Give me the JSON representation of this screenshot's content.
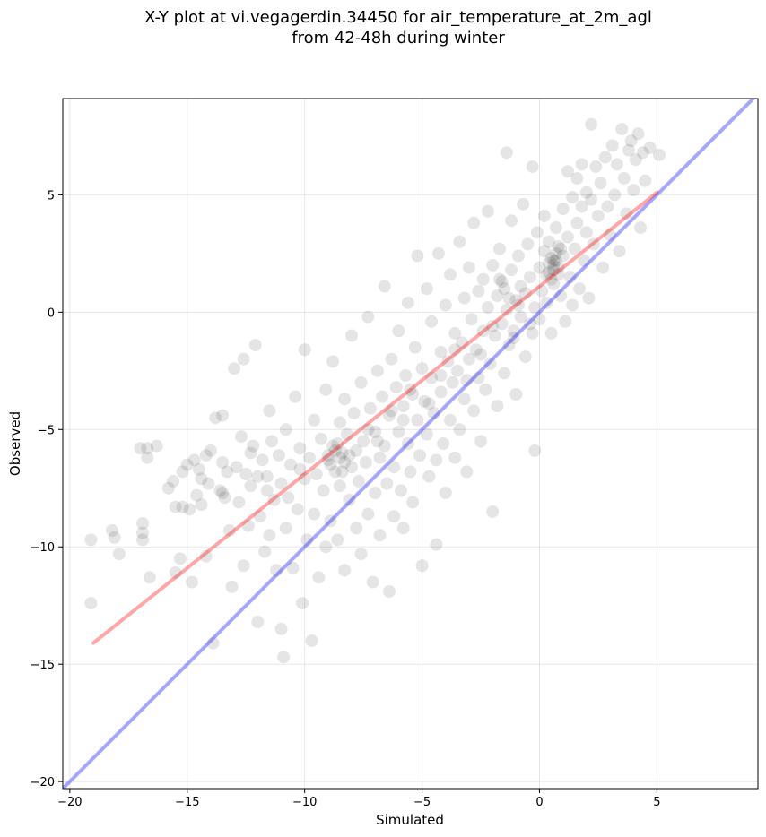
{
  "chart_data": {
    "type": "scatter",
    "title": [
      "X-Y plot at vi.vegagerdin.34450 for air_temperature_at_2m_agl",
      "from 42-48h during winter"
    ],
    "xlabel": "Simulated",
    "ylabel": "Observed",
    "xlim": [
      -20.3,
      9.3
    ],
    "ylim": [
      -20.3,
      9.1
    ],
    "xticks": [
      -20,
      -15,
      -10,
      -5,
      0,
      5
    ],
    "yticks": [
      -20,
      -15,
      -10,
      -5,
      0,
      5
    ],
    "grid": true,
    "point_color": "#000000",
    "point_alpha": 0.1,
    "reference_lines": [
      {
        "label": "identity",
        "color": "#0000ff",
        "alpha": 0.35,
        "x": [
          -20.3,
          9.3
        ],
        "y": [
          -20.3,
          9.3
        ]
      },
      {
        "label": "regression",
        "color": "#ff0000",
        "alpha": 0.35,
        "x": [
          -19,
          5
        ],
        "y": [
          -14.1,
          5.1
        ]
      }
    ],
    "points": [
      [
        -19.1,
        -9.7
      ],
      [
        -19.1,
        -12.4
      ],
      [
        -18.2,
        -9.3
      ],
      [
        -18.1,
        -9.6
      ],
      [
        -17.9,
        -10.3
      ],
      [
        -17.0,
        -5.8
      ],
      [
        -16.9,
        -9.0
      ],
      [
        -16.9,
        -9.4
      ],
      [
        -16.9,
        -9.7
      ],
      [
        -16.7,
        -6.2
      ],
      [
        -16.7,
        -5.8
      ],
      [
        -16.6,
        -11.3
      ],
      [
        -16.3,
        -5.7
      ],
      [
        -15.8,
        -7.5
      ],
      [
        -15.6,
        -7.2
      ],
      [
        -15.5,
        -8.3
      ],
      [
        -15.5,
        -11.1
      ],
      [
        -15.3,
        -10.5
      ],
      [
        -15.2,
        -6.8
      ],
      [
        -15.2,
        -8.3
      ],
      [
        -15.0,
        -6.5
      ],
      [
        -14.9,
        -8.4
      ],
      [
        -14.8,
        -11.5
      ],
      [
        -14.7,
        -6.3
      ],
      [
        -14.6,
        -7.8
      ],
      [
        -14.5,
        -6.7
      ],
      [
        -14.4,
        -8.2
      ],
      [
        -14.2,
        -6.1
      ],
      [
        -14.2,
        -10.4
      ],
      [
        -14.1,
        -7.3
      ],
      [
        -14.0,
        -5.9
      ],
      [
        -13.9,
        -14.1
      ],
      [
        -13.8,
        -4.5
      ],
      [
        -13.6,
        -7.6
      ],
      [
        -13.5,
        -6.4
      ],
      [
        -13.5,
        -4.4
      ],
      [
        -13.4,
        -7.9
      ],
      [
        -13.3,
        -6.8
      ],
      [
        -13.2,
        -9.3
      ],
      [
        -13.1,
        -11.7
      ],
      [
        -13.0,
        -2.4
      ],
      [
        -12.9,
        -6.6
      ],
      [
        -12.8,
        -8.1
      ],
      [
        -12.7,
        -5.3
      ],
      [
        -12.6,
        -2.0
      ],
      [
        -12.6,
        -10.8
      ],
      [
        -12.5,
        -6.9
      ],
      [
        -12.4,
        -9.1
      ],
      [
        -12.3,
        -7.4
      ],
      [
        -12.2,
        -5.7
      ],
      [
        -12.1,
        -1.4
      ],
      [
        -12.0,
        -7.0
      ],
      [
        -12.0,
        -13.2
      ],
      [
        -11.9,
        -8.7
      ],
      [
        -11.8,
        -6.3
      ],
      [
        -11.7,
        -10.2
      ],
      [
        -11.6,
        -7.6
      ],
      [
        -11.5,
        -4.2
      ],
      [
        -11.5,
        -9.5
      ],
      [
        -11.4,
        -5.5
      ],
      [
        -11.3,
        -8.0
      ],
      [
        -11.2,
        -11.0
      ],
      [
        -11.1,
        -6.1
      ],
      [
        -11.0,
        -7.3
      ],
      [
        -11.0,
        -13.5
      ],
      [
        -10.9,
        -14.7
      ],
      [
        -10.8,
        -5.0
      ],
      [
        -10.8,
        -9.2
      ],
      [
        -10.7,
        -7.9
      ],
      [
        -10.6,
        -6.5
      ],
      [
        -10.5,
        -10.9
      ],
      [
        -10.4,
        -3.6
      ],
      [
        -10.3,
        -8.4
      ],
      [
        -10.2,
        -5.8
      ],
      [
        -10.1,
        -12.4
      ],
      [
        -10.0,
        -1.6
      ],
      [
        -10.0,
        -7.1
      ],
      [
        -9.9,
        -9.7
      ],
      [
        -9.8,
        -6.2
      ],
      [
        -9.7,
        -14.0
      ],
      [
        -9.6,
        -4.6
      ],
      [
        -9.6,
        -8.6
      ],
      [
        -9.5,
        -6.9
      ],
      [
        -9.4,
        -11.3
      ],
      [
        -9.3,
        -5.4
      ],
      [
        -9.2,
        -7.6
      ],
      [
        -9.1,
        -3.3
      ],
      [
        -9.1,
        -10.0
      ],
      [
        -9.0,
        -6.1
      ],
      [
        -8.9,
        -8.9
      ],
      [
        -8.8,
        -5.7
      ],
      [
        -8.8,
        -2.1
      ],
      [
        -8.7,
        -6.8
      ],
      [
        -8.6,
        -9.7
      ],
      [
        -8.5,
        -4.7
      ],
      [
        -8.5,
        -7.4
      ],
      [
        -8.4,
        -6.0
      ],
      [
        -8.3,
        -3.7
      ],
      [
        -8.3,
        -11.0
      ],
      [
        -8.2,
        -5.2
      ],
      [
        -8.1,
        -8.0
      ],
      [
        -8.0,
        -6.6
      ],
      [
        -8.0,
        -1.0
      ],
      [
        -7.9,
        -4.3
      ],
      [
        -7.8,
        -9.2
      ],
      [
        -7.8,
        -5.9
      ],
      [
        -7.7,
        -7.2
      ],
      [
        -7.6,
        -3.0
      ],
      [
        -7.6,
        -10.3
      ],
      [
        -7.5,
        -5.5
      ],
      [
        -7.4,
        -6.4
      ],
      [
        -7.3,
        -8.6
      ],
      [
        -7.3,
        -0.2
      ],
      [
        -7.2,
        -4.1
      ],
      [
        -7.1,
        -11.5
      ],
      [
        -7.0,
        -5.1
      ],
      [
        -7.0,
        -7.7
      ],
      [
        -6.9,
        -2.5
      ],
      [
        -6.8,
        -6.2
      ],
      [
        -6.8,
        -9.5
      ],
      [
        -6.7,
        -3.6
      ],
      [
        -6.6,
        -5.7
      ],
      [
        -6.6,
        1.1
      ],
      [
        -6.5,
        -7.3
      ],
      [
        -6.4,
        -4.4
      ],
      [
        -6.4,
        -11.9
      ],
      [
        -6.3,
        -2.0
      ],
      [
        -6.2,
        -6.6
      ],
      [
        -6.2,
        -8.7
      ],
      [
        -6.1,
        -3.2
      ],
      [
        -6.0,
        -5.1
      ],
      [
        -6.0,
        -0.8
      ],
      [
        -5.9,
        -7.6
      ],
      [
        -5.8,
        -4.0
      ],
      [
        -5.8,
        -9.2
      ],
      [
        -5.7,
        -2.7
      ],
      [
        -5.6,
        -5.6
      ],
      [
        -5.6,
        0.4
      ],
      [
        -5.5,
        -6.8
      ],
      [
        -5.4,
        -3.5
      ],
      [
        -5.4,
        -8.1
      ],
      [
        -5.3,
        -1.5
      ],
      [
        -5.2,
        -4.6
      ],
      [
        -5.2,
        2.4
      ],
      [
        -5.1,
        -6.1
      ],
      [
        -5.0,
        -2.4
      ],
      [
        -5.0,
        -10.8
      ],
      [
        -4.9,
        -3.8
      ],
      [
        -4.8,
        -5.2
      ],
      [
        -4.8,
        1.0
      ],
      [
        -4.7,
        -7.0
      ],
      [
        -4.6,
        -2.8
      ],
      [
        -4.6,
        -0.4
      ],
      [
        -4.5,
        -4.3
      ],
      [
        -4.4,
        -9.9
      ],
      [
        -4.4,
        -6.3
      ],
      [
        -4.3,
        2.5
      ],
      [
        -4.2,
        -1.7
      ],
      [
        -4.2,
        -3.4
      ],
      [
        -4.1,
        -5.6
      ],
      [
        -4.0,
        0.3
      ],
      [
        -4.0,
        -7.7
      ],
      [
        -3.9,
        -2.1
      ],
      [
        -3.8,
        -4.6
      ],
      [
        -3.8,
        1.6
      ],
      [
        -3.7,
        -3.0
      ],
      [
        -3.6,
        -6.2
      ],
      [
        -3.6,
        -0.9
      ],
      [
        -3.5,
        -2.5
      ],
      [
        -3.4,
        3.0
      ],
      [
        -3.4,
        -5.0
      ],
      [
        -3.3,
        -1.3
      ],
      [
        -3.2,
        0.6
      ],
      [
        -3.2,
        -3.7
      ],
      [
        -3.1,
        -6.8
      ],
      [
        -3.0,
        -2.0
      ],
      [
        -3.0,
        1.9
      ],
      [
        -2.9,
        -0.3
      ],
      [
        -2.8,
        -4.2
      ],
      [
        -2.8,
        3.8
      ],
      [
        -2.7,
        -1.6
      ],
      [
        -2.6,
        0.9
      ],
      [
        -2.6,
        -2.8
      ],
      [
        -2.5,
        -5.5
      ],
      [
        -2.4,
        1.4
      ],
      [
        -2.4,
        -0.8
      ],
      [
        -2.3,
        -3.3
      ],
      [
        -2.2,
        4.3
      ],
      [
        -2.2,
        0.2
      ],
      [
        -2.1,
        -2.2
      ],
      [
        -2.0,
        2.0
      ],
      [
        -2.0,
        -8.5
      ],
      [
        -1.9,
        -1.0
      ],
      [
        -1.8,
        0.7
      ],
      [
        -1.8,
        -4.0
      ],
      [
        -1.7,
        2.7
      ],
      [
        -1.6,
        -0.5
      ],
      [
        -1.6,
        1.3
      ],
      [
        -1.5,
        -2.6
      ],
      [
        -1.4,
        6.8
      ],
      [
        -1.4,
        0.1
      ],
      [
        -1.3,
        -1.4
      ],
      [
        -1.2,
        3.9
      ],
      [
        -1.2,
        1.8
      ],
      [
        -1.1,
        -0.8
      ],
      [
        -1.0,
        0.5
      ],
      [
        -1.0,
        -3.5
      ],
      [
        -0.9,
        2.4
      ],
      [
        -0.8,
        -0.2
      ],
      [
        -0.8,
        1.1
      ],
      [
        -0.7,
        4.6
      ],
      [
        -0.6,
        -1.9
      ],
      [
        -0.6,
        0.8
      ],
      [
        -0.5,
        2.9
      ],
      [
        -0.4,
        -0.5
      ],
      [
        -0.4,
        1.5
      ],
      [
        -0.3,
        6.2
      ],
      [
        -0.2,
        0.2
      ],
      [
        -0.2,
        -5.9
      ],
      [
        -0.1,
        3.4
      ],
      [
        0.0,
        1.9
      ],
      [
        0.0,
        -0.3
      ],
      [
        0.1,
        0.9
      ],
      [
        0.2,
        2.6
      ],
      [
        0.2,
        4.1
      ],
      [
        0.3,
        0.4
      ],
      [
        0.4,
        1.7
      ],
      [
        0.4,
        3.0
      ],
      [
        0.5,
        -0.9
      ],
      [
        0.6,
        2.2
      ],
      [
        0.6,
        1.2
      ],
      [
        0.7,
        3.6
      ],
      [
        0.8,
        2.8
      ],
      [
        0.8,
        1.9
      ],
      [
        0.9,
        0.7
      ],
      [
        1.0,
        4.4
      ],
      [
        1.0,
        2.4
      ],
      [
        1.1,
        -0.4
      ],
      [
        1.2,
        3.2
      ],
      [
        1.2,
        6.0
      ],
      [
        1.3,
        1.5
      ],
      [
        1.4,
        4.9
      ],
      [
        1.4,
        0.3
      ],
      [
        1.5,
        2.7
      ],
      [
        1.6,
        5.7
      ],
      [
        1.6,
        3.8
      ],
      [
        1.7,
        1.0
      ],
      [
        1.8,
        4.5
      ],
      [
        1.8,
        6.3
      ],
      [
        1.9,
        2.2
      ],
      [
        2.0,
        5.1
      ],
      [
        2.0,
        3.4
      ],
      [
        2.1,
        0.6
      ],
      [
        2.2,
        8.0
      ],
      [
        2.2,
        4.8
      ],
      [
        2.3,
        2.9
      ],
      [
        2.4,
        6.2
      ],
      [
        2.5,
        4.1
      ],
      [
        2.6,
        5.5
      ],
      [
        2.7,
        1.9
      ],
      [
        2.8,
        6.6
      ],
      [
        2.9,
        4.5
      ],
      [
        3.0,
        3.3
      ],
      [
        3.1,
        7.1
      ],
      [
        3.2,
        5.0
      ],
      [
        3.3,
        6.3
      ],
      [
        3.4,
        2.6
      ],
      [
        3.5,
        7.8
      ],
      [
        3.6,
        5.7
      ],
      [
        3.7,
        4.2
      ],
      [
        3.8,
        6.9
      ],
      [
        3.9,
        7.3
      ],
      [
        4.0,
        5.2
      ],
      [
        4.1,
        6.5
      ],
      [
        4.2,
        7.6
      ],
      [
        4.3,
        3.6
      ],
      [
        4.4,
        6.8
      ],
      [
        4.5,
        5.6
      ],
      [
        4.7,
        7.0
      ],
      [
        5.1,
        6.7
      ],
      [
        0.5,
        1.4
      ],
      [
        0.6,
        2.0
      ],
      [
        0.7,
        2.5
      ],
      [
        0.5,
        2.3
      ],
      [
        0.8,
        1.6
      ],
      [
        0.4,
        2.1
      ],
      [
        0.9,
        2.7
      ],
      [
        0.6,
        1.8
      ],
      [
        0.7,
        2.2
      ],
      [
        0.3,
        1.6
      ],
      [
        -8.5,
        -6.2
      ],
      [
        -8.7,
        -5.9
      ],
      [
        -8.3,
        -6.4
      ],
      [
        -8.9,
        -6.5
      ],
      [
        -8.6,
        -5.6
      ],
      [
        -8.1,
        -6.1
      ],
      [
        -9.0,
        -6.3
      ],
      [
        -8.4,
        -6.8
      ],
      [
        -1.5,
        1.0
      ],
      [
        -1.3,
        0.6
      ],
      [
        -1.7,
        1.4
      ],
      [
        -2.0,
        -0.6
      ],
      [
        -0.9,
        0.3
      ],
      [
        -3.6,
        -1.6
      ],
      [
        -4.2,
        -2.7
      ],
      [
        -5.5,
        -3.3
      ],
      [
        -6.3,
        -4.2
      ],
      [
        -7.3,
        -5.0
      ],
      [
        -10.2,
        -6.7
      ],
      [
        -11.6,
        -7.0
      ],
      [
        -12.3,
        -6.0
      ],
      [
        -13.5,
        -7.7
      ],
      [
        -14.4,
        -7.1
      ],
      [
        -6.9,
        -5.5
      ],
      [
        -5.8,
        -4.6
      ],
      [
        -4.7,
        -3.9
      ],
      [
        -3.1,
        -2.9
      ],
      [
        -2.5,
        -1.8
      ],
      [
        -1.1,
        -1.1
      ],
      [
        -0.3,
        -0.9
      ]
    ]
  }
}
